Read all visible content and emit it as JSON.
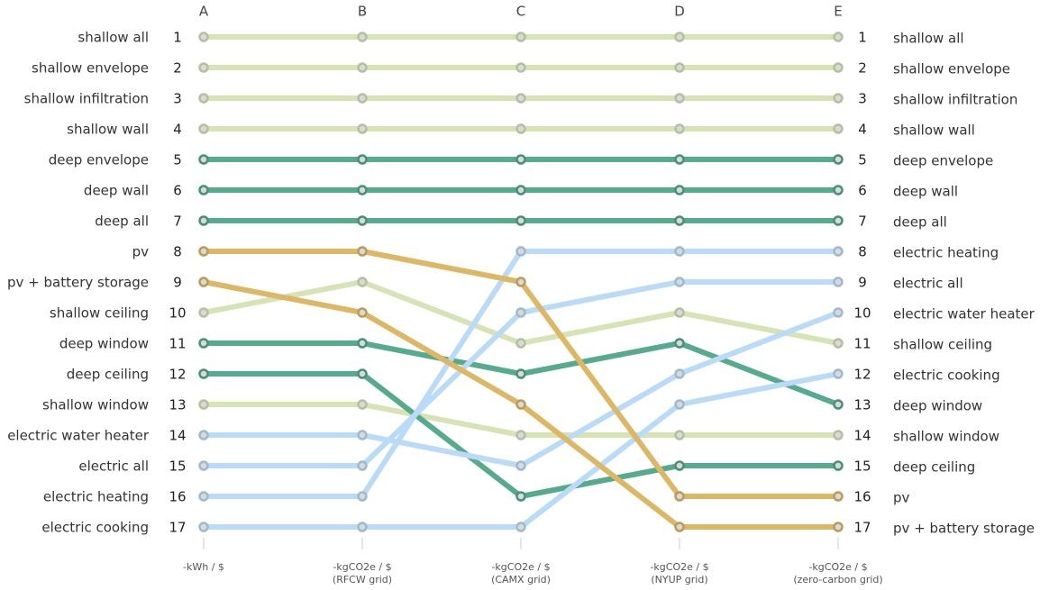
{
  "chart_data": {
    "type": "bump",
    "categories": [
      "A",
      "B",
      "C",
      "D",
      "E"
    ],
    "category_axis_labels": [
      [
        "-kWh / $"
      ],
      [
        "-kgCO2e / $",
        "(RFCW grid)"
      ],
      [
        "-kgCO2e / $",
        "(CAMX grid)"
      ],
      [
        "-kgCO2e / $",
        "(NYUP grid)"
      ],
      [
        "-kgCO2e / $",
        "(zero-carbon grid)"
      ]
    ],
    "ylim": [
      1,
      17
    ],
    "yticks": [
      1,
      2,
      3,
      4,
      5,
      6,
      7,
      8,
      9,
      10,
      11,
      12,
      13,
      14,
      15,
      16,
      17
    ],
    "left_labels": [
      "shallow all",
      "shallow envelope",
      "shallow infiltration",
      "shallow wall",
      "deep envelope",
      "deep wall",
      "deep all",
      "pv",
      "pv + battery storage",
      "shallow ceiling",
      "deep window",
      "deep ceiling",
      "shallow window",
      "electric water heater",
      "electric all",
      "electric heating",
      "electric cooking"
    ],
    "right_labels": [
      "shallow all",
      "shallow envelope",
      "shallow infiltration",
      "shallow wall",
      "deep envelope",
      "deep wall",
      "deep all",
      "electric heating",
      "electric all",
      "electric water heater",
      "shallow ceiling",
      "electric cooking",
      "deep window",
      "shallow window",
      "deep ceiling",
      "pv",
      "pv + battery storage"
    ],
    "series": [
      {
        "name": "shallow all",
        "color": "#d5e3b5",
        "values": [
          1,
          1,
          1,
          1,
          1
        ]
      },
      {
        "name": "shallow envelope",
        "color": "#d5e3b5",
        "values": [
          2,
          2,
          2,
          2,
          2
        ]
      },
      {
        "name": "shallow infiltration",
        "color": "#d5e3b5",
        "values": [
          3,
          3,
          3,
          3,
          3
        ]
      },
      {
        "name": "shallow wall",
        "color": "#d5e3b5",
        "values": [
          4,
          4,
          4,
          4,
          4
        ]
      },
      {
        "name": "deep envelope",
        "color": "#55ab8b",
        "values": [
          5,
          5,
          5,
          5,
          5
        ]
      },
      {
        "name": "deep wall",
        "color": "#55ab8b",
        "values": [
          6,
          6,
          6,
          6,
          6
        ]
      },
      {
        "name": "deep all",
        "color": "#55ab8b",
        "values": [
          7,
          7,
          7,
          7,
          7
        ]
      },
      {
        "name": "shallow ceiling",
        "color": "#d5e3b5",
        "values": [
          10,
          9,
          11,
          10,
          11
        ]
      },
      {
        "name": "shallow window",
        "color": "#d5e3b5",
        "values": [
          13,
          13,
          14,
          14,
          14
        ]
      },
      {
        "name": "deep window",
        "color": "#55ab8b",
        "values": [
          11,
          11,
          12,
          11,
          13
        ]
      },
      {
        "name": "deep ceiling",
        "color": "#55ab8b",
        "values": [
          12,
          12,
          16,
          15,
          15
        ]
      },
      {
        "name": "electric water heater",
        "color": "#b9dbf8",
        "values": [
          14,
          14,
          15,
          12,
          10
        ]
      },
      {
        "name": "electric all",
        "color": "#b9dbf8",
        "values": [
          15,
          15,
          10,
          9,
          9
        ]
      },
      {
        "name": "electric heating",
        "color": "#b9dbf8",
        "values": [
          16,
          16,
          8,
          8,
          8
        ]
      },
      {
        "name": "electric cooking",
        "color": "#b9dbf8",
        "values": [
          17,
          17,
          17,
          13,
          12
        ]
      },
      {
        "name": "pv",
        "color": "#dcb866",
        "values": [
          8,
          8,
          9,
          16,
          16
        ]
      },
      {
        "name": "pv + battery storage",
        "color": "#dcb866",
        "values": [
          9,
          10,
          13,
          17,
          17
        ]
      }
    ]
  }
}
